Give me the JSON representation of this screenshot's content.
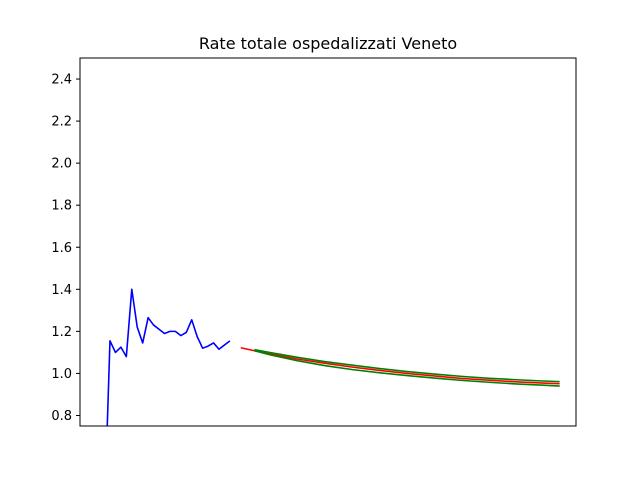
{
  "chart_data": {
    "type": "line",
    "title": "Rate totale ospedalizzati Veneto",
    "xlabel": "",
    "ylabel": "",
    "ylim": [
      0.75,
      2.5
    ],
    "xlim": [
      -5,
      86
    ],
    "yticks": [
      "0.8",
      "1.0",
      "1.2",
      "1.4",
      "1.6",
      "1.8",
      "2.0",
      "2.2",
      "2.4"
    ],
    "grid": false,
    "series": [
      {
        "key": "observed",
        "color": "#0000ff",
        "x": [
          0,
          0.5,
          1.5,
          2.5,
          3.5,
          4.5,
          5.5,
          6.5,
          7.5,
          8.5,
          9.5,
          10.5,
          11.5,
          12.5,
          13.5,
          14.5,
          15.5,
          16.5,
          17.5,
          18.5,
          19.5,
          20.5,
          21.5,
          22.5
        ],
        "y": [
          0.75,
          1.155,
          1.1,
          1.125,
          1.08,
          1.4,
          1.22,
          1.145,
          1.265,
          1.23,
          1.21,
          1.19,
          1.2,
          1.2,
          1.18,
          1.195,
          1.255,
          1.175,
          1.12,
          1.13,
          1.145,
          1.115,
          1.135,
          1.155
        ]
      },
      {
        "key": "forecast",
        "color": "#ff0000",
        "x": [
          24.5,
          27,
          30,
          35,
          40,
          45,
          50,
          55,
          60,
          65,
          70,
          75,
          80,
          83
        ],
        "y": [
          1.122,
          1.108,
          1.092,
          1.068,
          1.048,
          1.03,
          1.014,
          1.0,
          0.988,
          0.976,
          0.968,
          0.96,
          0.954,
          0.951
        ]
      },
      {
        "key": "upper",
        "color": "#008000",
        "x": [
          27,
          30,
          35,
          40,
          45,
          50,
          55,
          60,
          65,
          70,
          75,
          80,
          83
        ],
        "y": [
          1.113,
          1.099,
          1.076,
          1.056,
          1.039,
          1.023,
          1.009,
          0.997,
          0.986,
          0.977,
          0.97,
          0.964,
          0.961
        ]
      },
      {
        "key": "lower",
        "color": "#008000",
        "x": [
          27,
          30,
          35,
          40,
          45,
          50,
          55,
          60,
          65,
          70,
          75,
          80,
          83
        ],
        "y": [
          1.108,
          1.088,
          1.06,
          1.037,
          1.018,
          1.003,
          0.99,
          0.978,
          0.967,
          0.958,
          0.95,
          0.944,
          0.94
        ]
      }
    ]
  }
}
